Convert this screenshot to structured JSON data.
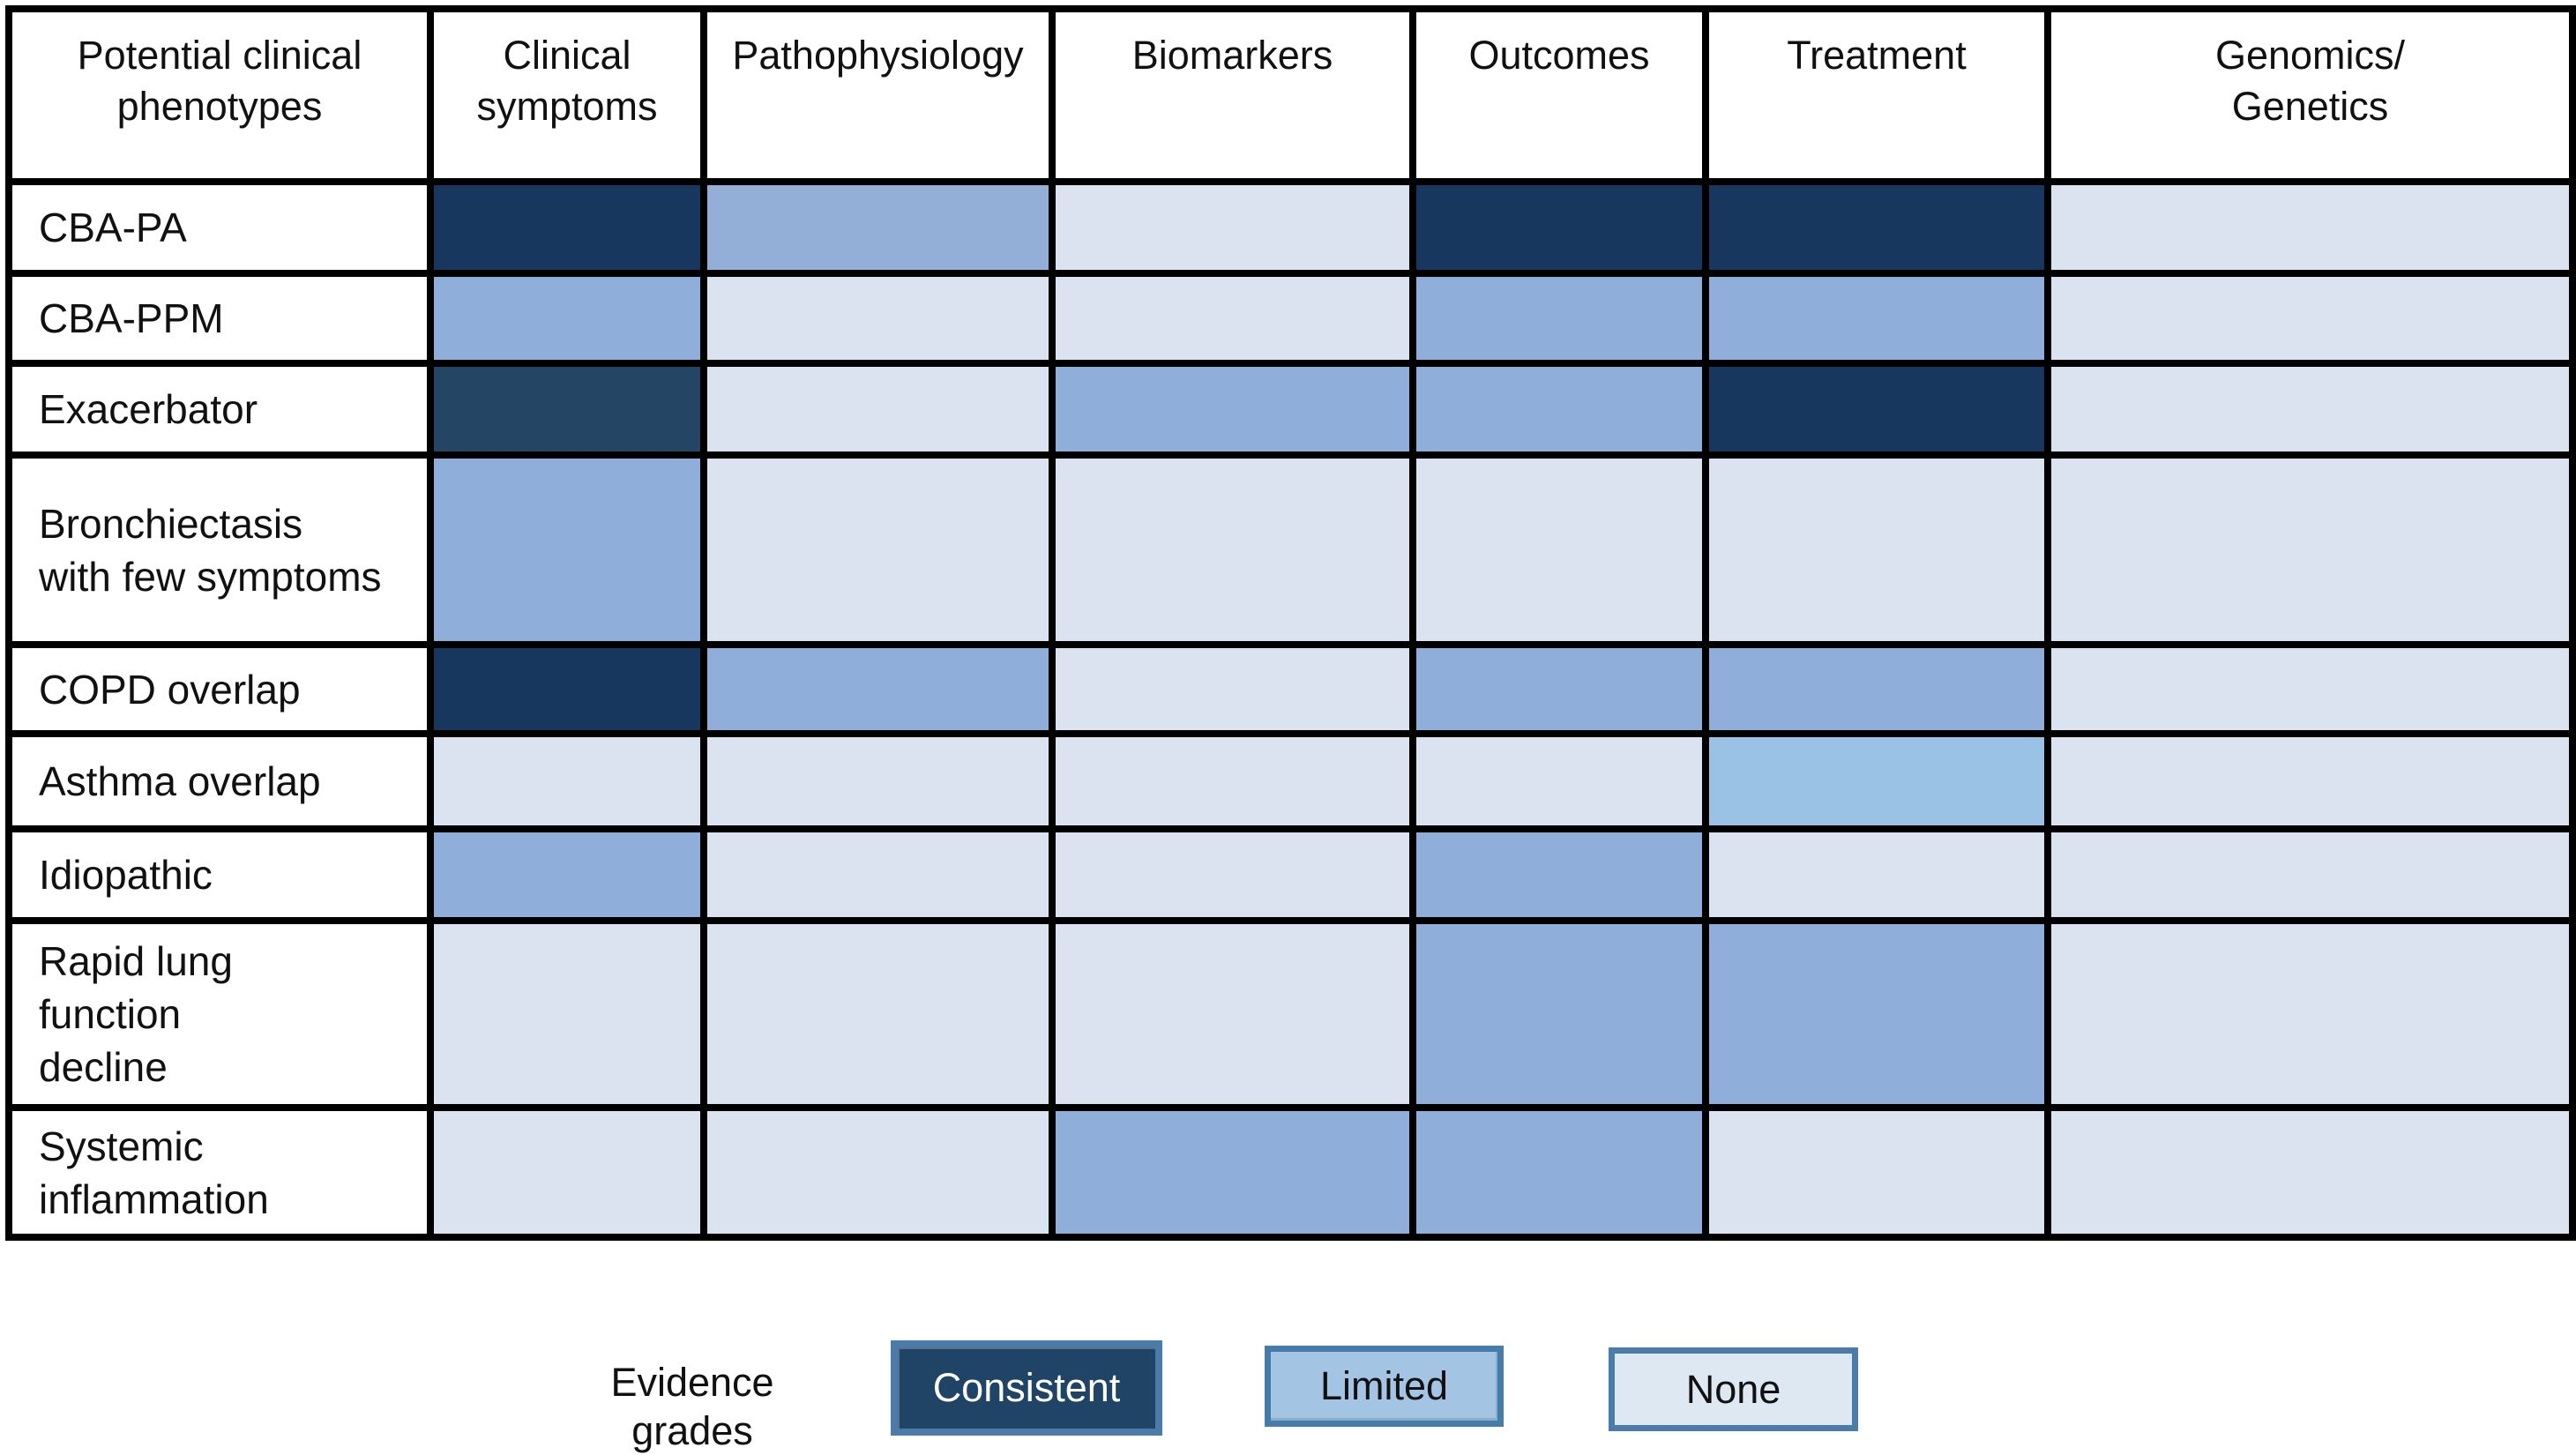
{
  "table": {
    "columns": [
      {
        "label": "Potential clinical\nphenotypes"
      },
      {
        "label": "Clinical\nsymptoms"
      },
      {
        "label": "Pathophysiology"
      },
      {
        "label": "Biomarkers"
      },
      {
        "label": "Outcomes"
      },
      {
        "label": "Treatment"
      },
      {
        "label": "Genomics/\nGenetics"
      }
    ],
    "rows": [
      {
        "label": "CBA-PA",
        "cells": [
          {
            "grade": "consistent",
            "color": "#17375E"
          },
          {
            "grade": "limited",
            "color": "#93AFD7"
          },
          {
            "grade": "none",
            "color": "#DBE3F0"
          },
          {
            "grade": "consistent",
            "color": "#17375E"
          },
          {
            "grade": "consistent",
            "color": "#17375E"
          },
          {
            "grade": "none",
            "color": "#DBE3F0"
          }
        ]
      },
      {
        "label": "CBA-PPM",
        "cells": [
          {
            "grade": "limited",
            "color": "#8FAFDA"
          },
          {
            "grade": "none",
            "color": "#DBE3F0"
          },
          {
            "grade": "none",
            "color": "#DBE3F0"
          },
          {
            "grade": "limited",
            "color": "#8FAFDA"
          },
          {
            "grade": "limited",
            "color": "#8FAFDA"
          },
          {
            "grade": "none",
            "color": "#DBE3F0"
          }
        ]
      },
      {
        "label": "Exacerbator",
        "cells": [
          {
            "grade": "consistent",
            "color": "#254565"
          },
          {
            "grade": "none",
            "color": "#DBE3F0"
          },
          {
            "grade": "limited",
            "color": "#8FAFDA"
          },
          {
            "grade": "limited",
            "color": "#8FAFDA"
          },
          {
            "grade": "consistent",
            "color": "#17375E"
          },
          {
            "grade": "none",
            "color": "#DBE3F0"
          }
        ]
      },
      {
        "label": "Bronchiectasis\nwith few symptoms",
        "cells": [
          {
            "grade": "limited",
            "color": "#8FAFDA"
          },
          {
            "grade": "none",
            "color": "#DBE3F0"
          },
          {
            "grade": "none",
            "color": "#DBE3F0"
          },
          {
            "grade": "none",
            "color": "#DBE3F0"
          },
          {
            "grade": "none",
            "color": "#DBE3F0"
          },
          {
            "grade": "none",
            "color": "#DBE3F0"
          }
        ]
      },
      {
        "label": "COPD overlap",
        "cells": [
          {
            "grade": "consistent",
            "color": "#17375E"
          },
          {
            "grade": "limited",
            "color": "#8FAFDA"
          },
          {
            "grade": "none",
            "color": "#DBE3F0"
          },
          {
            "grade": "limited",
            "color": "#8FAFDA"
          },
          {
            "grade": "limited",
            "color": "#8FAFDA"
          },
          {
            "grade": "none",
            "color": "#DBE3F0"
          }
        ]
      },
      {
        "label": "Asthma overlap",
        "cells": [
          {
            "grade": "none",
            "color": "#DBE3F0"
          },
          {
            "grade": "none",
            "color": "#DBE3F0"
          },
          {
            "grade": "none",
            "color": "#DBE3F0"
          },
          {
            "grade": "none",
            "color": "#DBE3F0"
          },
          {
            "grade": "limited",
            "color": "#9AC2E4"
          },
          {
            "grade": "none",
            "color": "#DBE3F0"
          }
        ]
      },
      {
        "label": "Idiopathic",
        "cells": [
          {
            "grade": "limited",
            "color": "#8FAFDA"
          },
          {
            "grade": "none",
            "color": "#DBE3F0"
          },
          {
            "grade": "none",
            "color": "#DBE3F0"
          },
          {
            "grade": "limited",
            "color": "#8FAFDA"
          },
          {
            "grade": "none",
            "color": "#DBE3F0"
          },
          {
            "grade": "none",
            "color": "#DBE3F0"
          }
        ]
      },
      {
        "label": "Rapid lung\nfunction\ndecline",
        "cells": [
          {
            "grade": "none",
            "color": "#DBE3F0"
          },
          {
            "grade": "none",
            "color": "#DBE3F0"
          },
          {
            "grade": "none",
            "color": "#DBE3F0"
          },
          {
            "grade": "limited",
            "color": "#8FAFDA"
          },
          {
            "grade": "limited",
            "color": "#8FAFDA"
          },
          {
            "grade": "none",
            "color": "#DBE3F0"
          }
        ]
      },
      {
        "label": "Systemic\ninflammation",
        "cells": [
          {
            "grade": "none",
            "color": "#DBE3F0"
          },
          {
            "grade": "none",
            "color": "#DBE3F0"
          },
          {
            "grade": "limited",
            "color": "#8FAFDA"
          },
          {
            "grade": "limited",
            "color": "#8FAFDA"
          },
          {
            "grade": "none",
            "color": "#DBE3F0"
          },
          {
            "grade": "none",
            "color": "#DBE3F0"
          }
        ]
      }
    ]
  },
  "legend": {
    "title": "Evidence\ngrades",
    "items": [
      {
        "label": "Consistent",
        "fill": "#1F4466",
        "border": "#4B7BA8",
        "text_color": "#FFFFFF"
      },
      {
        "label": "Limited",
        "fill": "#A3C4E3",
        "border": "#467CA9",
        "text_color": "#111111"
      },
      {
        "label": "None",
        "fill": "#DDE8F3",
        "border": "#4B7BA8",
        "text_color": "#111111"
      }
    ]
  },
  "grid_line_color": "#000000",
  "chart_data": {
    "type": "heatmap",
    "title": "",
    "x_categories": [
      "Clinical symptoms",
      "Pathophysiology",
      "Biomarkers",
      "Outcomes",
      "Treatment",
      "Genomics/Genetics"
    ],
    "y_categories": [
      "CBA-PA",
      "CBA-PPM",
      "Exacerbator",
      "Bronchiectasis with few symptoms",
      "COPD overlap",
      "Asthma overlap",
      "Idiopathic",
      "Rapid lung function decline",
      "Systemic inflammation"
    ],
    "y_axis_label": "Potential clinical phenotypes",
    "values": [
      [
        "consistent",
        "limited",
        "none",
        "consistent",
        "consistent",
        "none"
      ],
      [
        "limited",
        "none",
        "none",
        "limited",
        "limited",
        "none"
      ],
      [
        "consistent",
        "none",
        "limited",
        "limited",
        "consistent",
        "none"
      ],
      [
        "limited",
        "none",
        "none",
        "none",
        "none",
        "none"
      ],
      [
        "consistent",
        "limited",
        "none",
        "limited",
        "limited",
        "none"
      ],
      [
        "none",
        "none",
        "none",
        "none",
        "limited",
        "none"
      ],
      [
        "limited",
        "none",
        "none",
        "limited",
        "none",
        "none"
      ],
      [
        "none",
        "none",
        "none",
        "limited",
        "limited",
        "none"
      ],
      [
        "none",
        "none",
        "limited",
        "limited",
        "none",
        "none"
      ]
    ],
    "legend": {
      "title": "Evidence grades",
      "entries": [
        "Consistent",
        "Limited",
        "None"
      ],
      "position": "bottom"
    },
    "colors": {
      "consistent": "#17375E",
      "limited": "#8FAFDA",
      "none": "#DBE3F0"
    },
    "grid": true
  }
}
